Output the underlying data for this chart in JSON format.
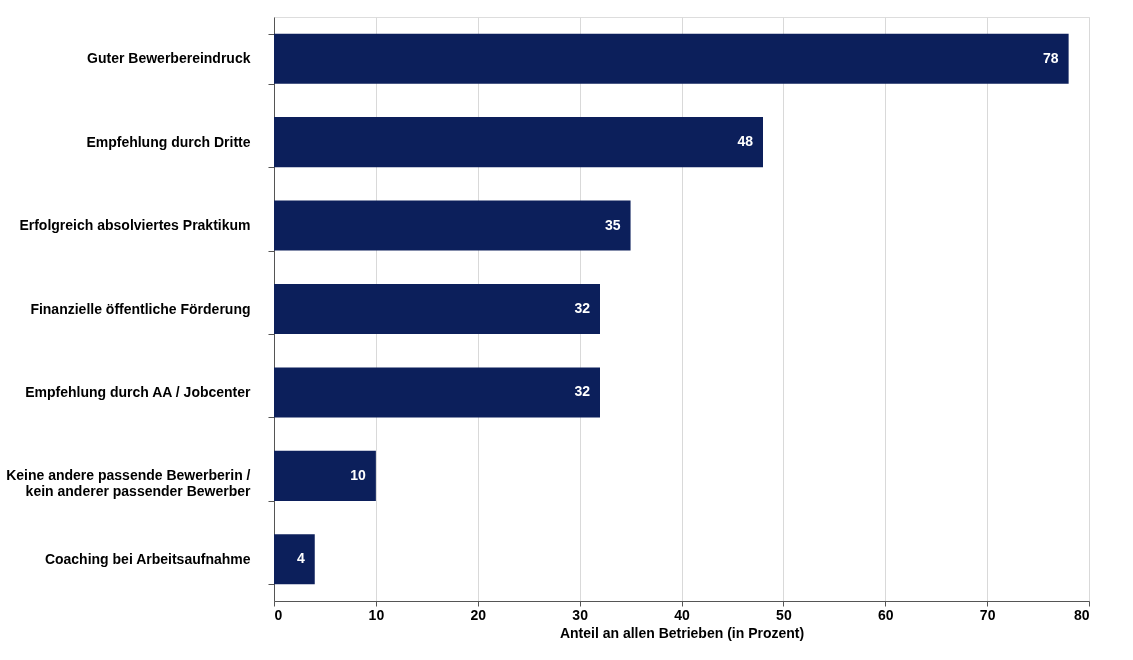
{
  "chart_data": {
    "type": "bar",
    "orientation": "horizontal",
    "xlabel": "Anteil  an allen Betrieben (in Prozent)",
    "categories": [
      "Guter Bewerbereindruck",
      "Empfehlung durch Dritte",
      "Erfolgreich absolviertes Praktikum",
      "Finanzielle öffentliche Förderung",
      "Empfehlung durch AA / Jobcenter",
      "Keine andere passende Bewerberin /\nkein anderer passender Bewerber",
      "Coaching bei Arbeitsaufnahme"
    ],
    "values": [
      78,
      48,
      35,
      32,
      32,
      10,
      4
    ],
    "color": "#0c1f5b",
    "xlim": [
      0,
      80
    ],
    "xticks": [
      0,
      10,
      20,
      30,
      40,
      50,
      60,
      70,
      80
    ],
    "grid": "x",
    "data_labels": true
  }
}
